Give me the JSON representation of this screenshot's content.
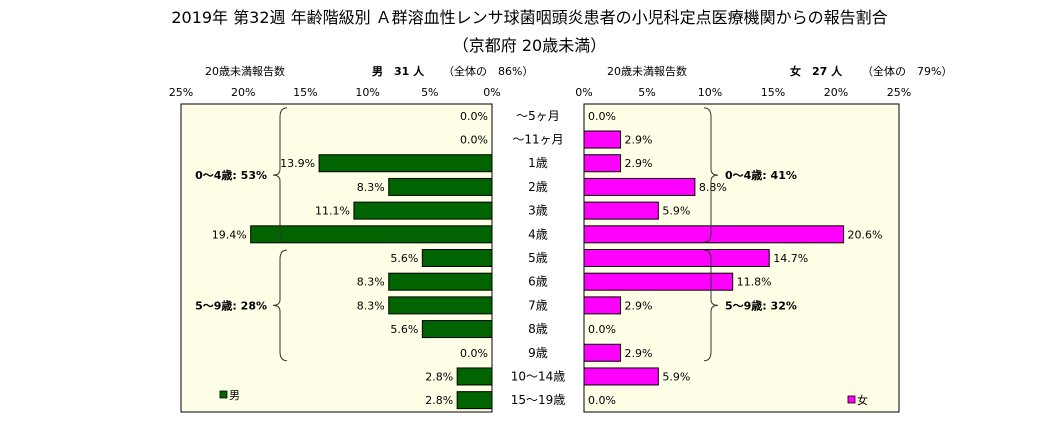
{
  "title": "2019年 第32週 年齢階級別 Ａ群溶血性レンサ球菌咽頭炎患者の小児科定点医療機関からの報告割合",
  "subtitle": "（京都府 20歳未満）",
  "left_header": {
    "caption": "20歳未満報告数",
    "sex_count": "男　31 人",
    "share": "（全体の　86%）"
  },
  "right_header": {
    "caption": "20歳未満報告数",
    "sex_count": "女　27 人",
    "share": "（全体の　79%）"
  },
  "chart_data": {
    "type": "bar",
    "orientation": "horizontal",
    "layout": "population-pyramid",
    "categories": [
      "～5ヶ月",
      "～11ヶ月",
      "1歳",
      "2歳",
      "3歳",
      "4歳",
      "5歳",
      "6歳",
      "7歳",
      "8歳",
      "9歳",
      "10～14歳",
      "15～19歳"
    ],
    "xlim": [
      0,
      25
    ],
    "ticks": [
      0,
      5,
      10,
      15,
      20,
      25
    ],
    "tick_suffix": "%",
    "series": [
      {
        "name": "男",
        "side": "left",
        "color": "#006400",
        "values": [
          0.0,
          0.0,
          13.9,
          8.3,
          11.1,
          19.4,
          5.6,
          8.3,
          8.3,
          5.6,
          0.0,
          2.8,
          2.8
        ],
        "labels": [
          "0.0%",
          "0.0%",
          "13.9%",
          "8.3%",
          "11.1%",
          "19.4%",
          "5.6%",
          "8.3%",
          "8.3%",
          "5.6%",
          "0.0%",
          "2.8%",
          "2.8%"
        ]
      },
      {
        "name": "女",
        "side": "right",
        "color": "#ff00ff",
        "values": [
          0.0,
          2.9,
          2.9,
          8.8,
          5.9,
          20.6,
          14.7,
          11.8,
          2.9,
          0.0,
          2.9,
          5.9,
          0.0
        ],
        "labels": [
          "0.0%",
          "2.9%",
          "2.9%",
          "8.8%",
          "5.9%",
          "20.6%",
          "14.7%",
          "11.8%",
          "2.9%",
          "0.0%",
          "2.9%",
          "5.9%",
          "0.0%"
        ]
      }
    ],
    "annotations": [
      {
        "side": "left",
        "text": "0～4歳: 53%",
        "range": [
          "～5ヶ月",
          "4歳"
        ]
      },
      {
        "side": "left",
        "text": "5～9歳: 28%",
        "range": [
          "5歳",
          "9歳"
        ]
      },
      {
        "side": "right",
        "text": "0～4歳: 41%",
        "range": [
          "～5ヶ月",
          "4歳"
        ]
      },
      {
        "side": "right",
        "text": "5～9歳: 32%",
        "range": [
          "5歳",
          "9歳"
        ]
      }
    ],
    "legend": [
      {
        "name": "男",
        "placement": "bottom-left"
      },
      {
        "name": "女",
        "placement": "bottom-right"
      }
    ],
    "plot_background": "#ffffe8"
  }
}
